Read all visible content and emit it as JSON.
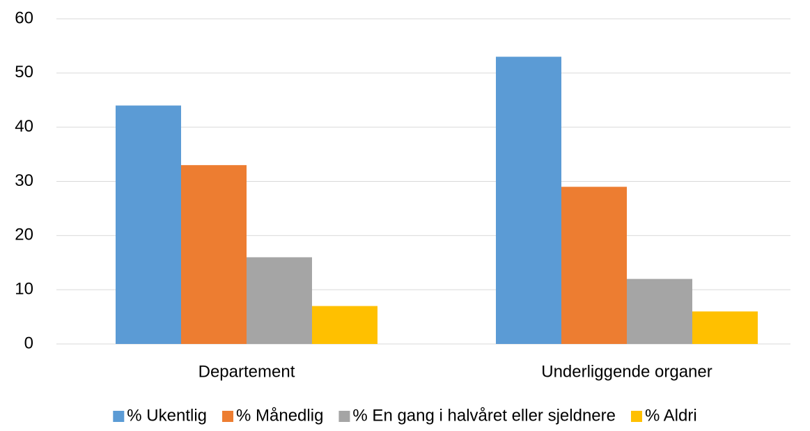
{
  "chart_data": {
    "type": "bar",
    "categories": [
      "Departement",
      "Underliggende organer"
    ],
    "series": [
      {
        "name": "% Ukentlig",
        "color": "#5b9bd5",
        "values": [
          44,
          53
        ]
      },
      {
        "name": "% Månedlig",
        "color": "#ed7d31",
        "values": [
          33,
          29
        ]
      },
      {
        "name": "% En gang i halvåret eller sjeldnere",
        "color": "#a5a5a5",
        "values": [
          16,
          12
        ]
      },
      {
        "name": "% Aldri",
        "color": "#ffc000",
        "values": [
          7,
          6
        ]
      }
    ],
    "ylim": [
      0,
      60
    ],
    "yticks": [
      0,
      10,
      20,
      30,
      40,
      50,
      60
    ],
    "grid": true,
    "legend": "bottom"
  }
}
